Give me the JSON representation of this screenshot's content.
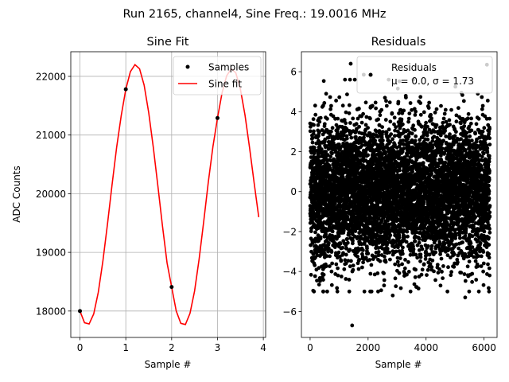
{
  "suptitle": "Run 2165, channel4, Sine Freq.: 19.0016 MHz",
  "chart_data": [
    {
      "type": "line",
      "title": "Sine Fit",
      "xlabel": "Sample #",
      "ylabel": "ADC Counts",
      "xlim": [
        -0.2,
        4.05
      ],
      "ylim": [
        17550,
        22420
      ],
      "xticks": [
        0,
        1,
        2,
        3,
        4
      ],
      "yticks": [
        18000,
        19000,
        20000,
        21000,
        22000
      ],
      "grid": true,
      "legend_position": "top-right",
      "series": [
        {
          "name": "Samples",
          "style": "points",
          "color": "#000000",
          "x": [
            0,
            1,
            2,
            3
          ],
          "y": [
            18000,
            21780,
            18410,
            21290
          ]
        },
        {
          "name": "Sine fit",
          "style": "line",
          "color": "#ff0000",
          "x": [
            0,
            0.1,
            0.2,
            0.3,
            0.4,
            0.5,
            0.6,
            0.7,
            0.8,
            0.9,
            1.0,
            1.1,
            1.2,
            1.3,
            1.4,
            1.5,
            1.6,
            1.7,
            1.8,
            1.9,
            2.0,
            2.1,
            2.2,
            2.3,
            2.4,
            2.5,
            2.6,
            2.7,
            2.8,
            2.9,
            3.0,
            3.1,
            3.2,
            3.3,
            3.4,
            3.5,
            3.6,
            3.7,
            3.8,
            3.9
          ],
          "y": [
            18000,
            17800,
            17780,
            17950,
            18320,
            18850,
            19480,
            20150,
            20790,
            21330,
            21780,
            22080,
            22200,
            22130,
            21850,
            21380,
            20790,
            20130,
            19450,
            18820,
            18410,
            18000,
            17790,
            17770,
            17960,
            18340,
            18890,
            19530,
            20200,
            20800,
            21290,
            21720,
            22010,
            22130,
            22060,
            21780,
            21340,
            20780,
            20180,
            19600
          ]
        }
      ]
    },
    {
      "type": "scatter",
      "title": "Residuals",
      "xlabel": "Sample #",
      "ylabel": "",
      "xlim": [
        -300,
        6450
      ],
      "ylim": [
        -7.3,
        7.0
      ],
      "xticks": [
        0,
        2000,
        4000,
        6000
      ],
      "yticks": [
        -6,
        -4,
        -2,
        0,
        2,
        4,
        6
      ],
      "grid": false,
      "legend_position": "top-right",
      "legend_lines": [
        "Residuals",
        "μ = 0.0, σ = 1.73"
      ],
      "n_points": 6200,
      "mean": 0.0,
      "std": 1.73,
      "color": "#000000",
      "notable_points": [
        {
          "x": 1400,
          "y": 6.4
        },
        {
          "x": 1450,
          "y": -6.7
        },
        {
          "x": 6100,
          "y": 6.35
        },
        {
          "x": 5350,
          "y": -5.3
        },
        {
          "x": 1850,
          "y": 5.85
        },
        {
          "x": 2850,
          "y": -5.2
        }
      ]
    }
  ]
}
